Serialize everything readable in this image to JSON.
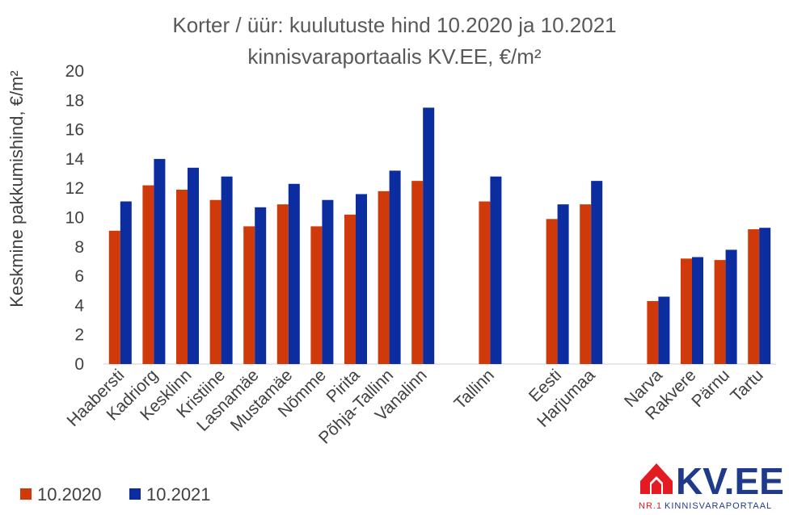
{
  "chart_data": {
    "type": "bar",
    "title": "Korter / üür: kuulutuste hind 10.2020 ja 10.2021",
    "subtitle": "kinnisvaraportaalis KV.EE, €/m²",
    "xlabel": "",
    "ylabel": "Keskmine pakkumishind, €/m²",
    "ylim": [
      0,
      20
    ],
    "yticks": [
      0,
      2,
      4,
      6,
      8,
      10,
      12,
      14,
      16,
      18,
      20
    ],
    "grid": false,
    "legend_position": "bottom-left",
    "groups": [
      {
        "categories": [
          "Haabersti",
          "Kadriorg",
          "Kesklinn",
          "Kristiine",
          "Lasnamäe",
          "Mustamäe",
          "Nõmme",
          "Pirita",
          "Põhja-Tallinn",
          "Vanalinn"
        ]
      },
      {
        "categories": [
          "Tallinn"
        ]
      },
      {
        "categories": [
          "Eesti",
          "Harjumaa"
        ]
      },
      {
        "categories": [
          "Narva",
          "Rakvere",
          "Pärnu",
          "Tartu"
        ]
      }
    ],
    "categories": [
      "Haabersti",
      "Kadriorg",
      "Kesklinn",
      "Kristiine",
      "Lasnamäe",
      "Mustamäe",
      "Nõmme",
      "Pirita",
      "Põhja-Tallinn",
      "Vanalinn",
      "Tallinn",
      "Eesti",
      "Harjumaa",
      "Narva",
      "Rakvere",
      "Pärnu",
      "Tartu"
    ],
    "series": [
      {
        "name": "10.2020",
        "color": "#d03a0b",
        "values": [
          9.1,
          12.2,
          11.9,
          11.2,
          9.4,
          10.9,
          9.4,
          10.2,
          11.8,
          12.5,
          11.1,
          9.9,
          10.9,
          4.3,
          7.2,
          7.1,
          9.2
        ]
      },
      {
        "name": "10.2021",
        "color": "#0b2d9f",
        "values": [
          11.1,
          14.0,
          13.4,
          12.8,
          10.7,
          12.3,
          11.2,
          11.6,
          13.2,
          17.5,
          12.8,
          10.9,
          12.5,
          4.6,
          7.3,
          7.8,
          9.3
        ]
      }
    ]
  },
  "logo": {
    "main_text": "KV.EE",
    "sub_prefix": "NR.1",
    "sub_text": "KINNISVARAPORTAAL",
    "brand_color": "#1f3a8a",
    "accent_color": "#e31b23"
  }
}
